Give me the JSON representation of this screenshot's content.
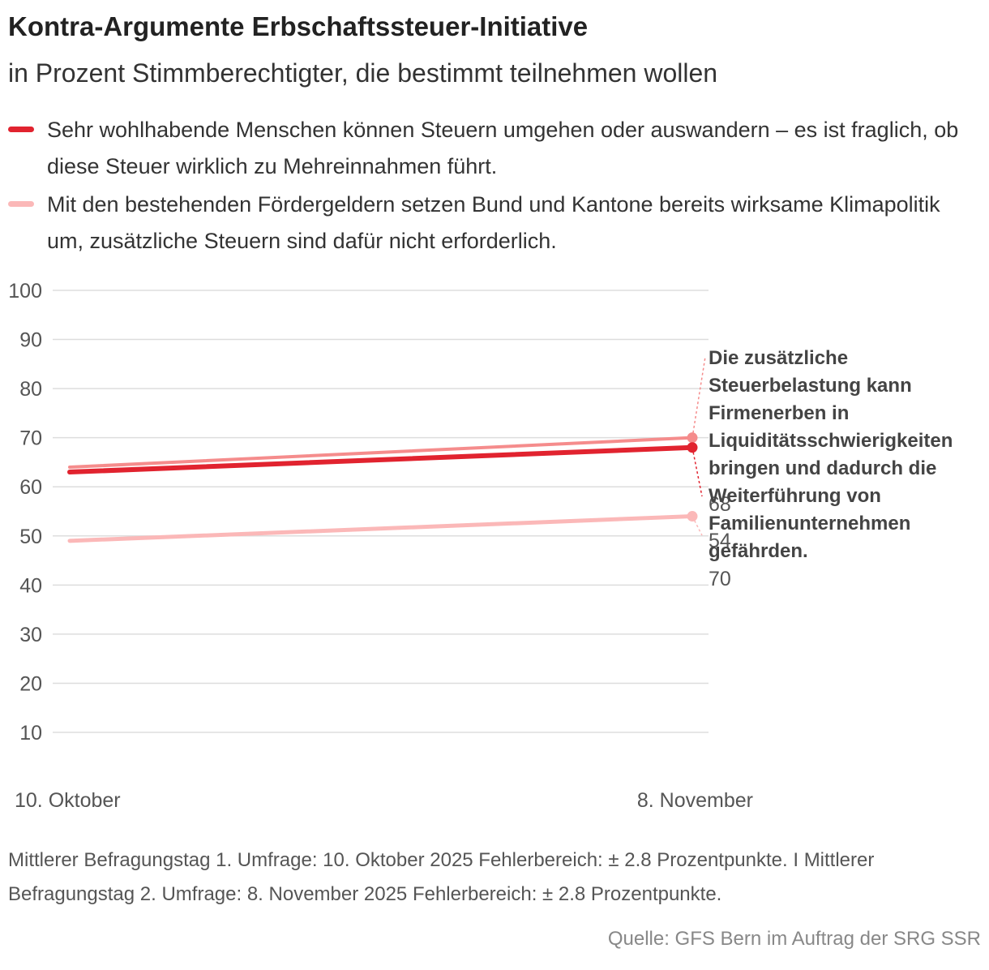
{
  "header": {
    "title": "Kontra-Argumente Erbschaftssteuer-Initiative",
    "subtitle": "in Prozent Stimmberechtigter, die bestimmt teilnehmen wollen"
  },
  "legend": {
    "items": [
      {
        "label": "Sehr wohlhabende Menschen können Steuern umgehen oder auswandern – es ist fraglich, ob diese Steuer wirklich zu Mehreinnahmen führt.",
        "color": "#e1232f"
      },
      {
        "label": "Mit den bestehenden Fördergeldern setzen Bund und Kantone bereits wirksame Klimapolitik um, zusätzliche Steuern sind dafür nicht erforderlich.",
        "color": "#fbb8b8"
      }
    ]
  },
  "chart_data": {
    "type": "line",
    "x": [
      "10. Oktober",
      "8. November"
    ],
    "ylim": [
      10,
      100
    ],
    "yticks": [
      100,
      90,
      80,
      70,
      60,
      50,
      40,
      30,
      20,
      10
    ],
    "grid": true,
    "legend_position": "top",
    "series": [
      {
        "name": "Sehr wohlhabende Menschen können Steuern umgehen oder auswandern – es ist fraglich, ob diese Steuer wirklich zu Mehreinnahmen führt.",
        "values": [
          63,
          68
        ],
        "color": "#e1232f",
        "end_label": "68"
      },
      {
        "name": "Mit den bestehenden Fördergeldern setzen Bund und Kantone bereits wirksame Klimapolitik um, zusätzliche Steuern sind dafür nicht erforderlich.",
        "values": [
          49,
          54
        ],
        "color": "#fbb8b8",
        "end_label": "54"
      },
      {
        "name": "Die zusätzliche Steuerbelastung kann Firmenerben in Liquiditätsschwierigkeiten bringen und dadurch die Weiterführung von Familienunternehmen gefährden.",
        "values": [
          64,
          70
        ],
        "color": "#f58c8c",
        "end_label": "70"
      }
    ],
    "annotation": "Die zusätzliche Steuerbelastung kann Firmenerben in Liquiditätsschwierigkeiten bringen und dadurch die Weiterführung von Familienunternehmen gefährden."
  },
  "footer": {
    "note": "Mittlerer Befragungstag 1. Umfrage: 10. Oktober 2025 Fehlerbereich: ± 2.8 Prozentpunkte. I Mittlerer Befragungstag 2. Umfrage: 8. November 2025 Fehlerbereich: ± 2.8 Prozentpunkte.",
    "source": "Quelle: GFS Bern im Auftrag der SRG SSR"
  }
}
